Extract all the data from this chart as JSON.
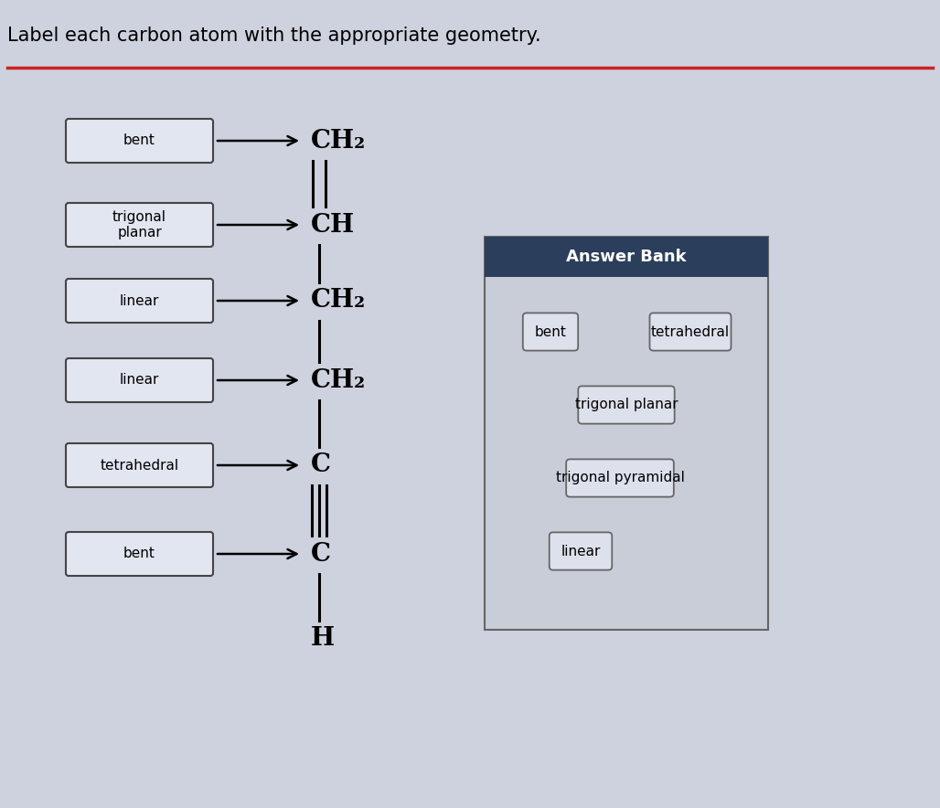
{
  "title": "Label each carbon atom with the appropriate geometry.",
  "background_color": "#cdd2de",
  "panel_background": "#cdd2de",
  "border_color": "#cc2222",
  "title_fontsize": 15,
  "labels_left": [
    "bent",
    "trigonal\nplanar",
    "linear",
    "linear",
    "tetrahedral",
    "bent"
  ],
  "molecule_atoms": [
    "CH₂",
    "CH",
    "CH₂",
    "CH₂",
    "C",
    "C",
    "H"
  ],
  "answer_bank_title": "Answer Bank",
  "answer_bank_header_color": "#2b3f5c",
  "answer_bank_items_row1": [
    "bent",
    "tetrahedral"
  ],
  "answer_bank_items_row2": [
    "trigonal planar"
  ],
  "answer_bank_items_row3": [
    "trigonal pyramidal"
  ],
  "answer_bank_items_row4": [
    "linear"
  ]
}
